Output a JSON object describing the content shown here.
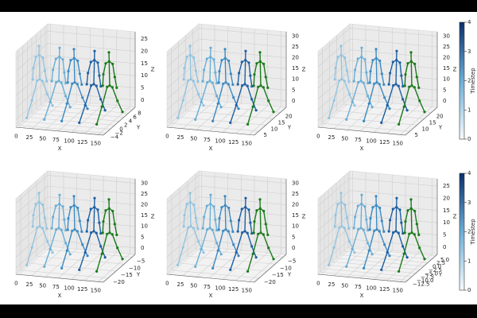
{
  "chart_data": [
    {
      "type": "skeleton3d",
      "xlabel": "X",
      "ylabel": "Y",
      "zlabel": "Z",
      "xlim": [
        -5,
        160
      ],
      "ylim": [
        -5,
        9
      ],
      "zlim": [
        -3,
        28
      ],
      "xticks": [
        0,
        25,
        50,
        75,
        100,
        125,
        150
      ],
      "yticks": [
        {
          "value": -4,
          "label": "−4"
        },
        {
          "value": -2,
          "label": "−2"
        },
        0,
        2,
        4,
        6,
        8
      ],
      "zticks": [
        0,
        5,
        10,
        15,
        20,
        25
      ],
      "colors": [
        "#94c4df",
        "#6aaed6",
        "#3c8ac2",
        "#1c5fa3",
        "#1a7a1a"
      ]
    },
    {
      "type": "skeleton3d",
      "xlabel": "X",
      "ylabel": "Y",
      "zlabel": "Z",
      "xlim": [
        -5,
        160
      ],
      "ylim": [
        2,
        24
      ],
      "zlim": [
        -3,
        32
      ],
      "xticks": [
        0,
        25,
        50,
        75,
        100,
        125,
        150
      ],
      "yticks": [
        5,
        10,
        15,
        20
      ],
      "zticks": [
        0,
        5,
        10,
        15,
        20,
        25,
        30
      ],
      "colors": [
        "#94c4df",
        "#6aaed6",
        "#3c8ac2",
        "#1c5fa3",
        "#1a7a1a"
      ]
    },
    {
      "type": "skeleton3d",
      "xlabel": "X",
      "ylabel": "Y",
      "zlabel": "Z",
      "xlim": [
        -5,
        160
      ],
      "ylim": [
        2,
        24
      ],
      "zlim": [
        -3,
        32
      ],
      "xticks": [
        0,
        25,
        50,
        75,
        100,
        125,
        150
      ],
      "yticks": [
        5,
        10,
        15,
        20
      ],
      "zticks": [
        0,
        5,
        10,
        15,
        20,
        25,
        30
      ],
      "colors": [
        "#94c4df",
        "#6aaed6",
        "#3c8ac2",
        "#1c5fa3",
        "#1a7a1a"
      ]
    },
    {
      "type": "skeleton3d",
      "xlabel": "X",
      "ylabel": "Y",
      "zlabel": "Z",
      "xlim": [
        -5,
        160
      ],
      "ylim": [
        -23,
        -3
      ],
      "zlim": [
        -3,
        32
      ],
      "xticks": [
        0,
        25,
        50,
        75,
        100,
        125,
        150
      ],
      "yticks": [
        {
          "value": -20,
          "label": "−20"
        },
        {
          "value": -15,
          "label": "−15"
        },
        {
          "value": -10,
          "label": "−10"
        },
        {
          "value": -5,
          "label": "−5"
        }
      ],
      "zticks": [
        0,
        5,
        10,
        15,
        20,
        25,
        30
      ],
      "colors": [
        "#94c4df",
        "#6aaed6",
        "#3c8ac2",
        "#1c5fa3",
        "#1a7a1a"
      ]
    },
    {
      "type": "skeleton3d",
      "xlabel": "X",
      "ylabel": "Y",
      "zlabel": "Z",
      "xlim": [
        -5,
        160
      ],
      "ylim": [
        -23,
        -3
      ],
      "zlim": [
        -3,
        32
      ],
      "xticks": [
        0,
        25,
        50,
        75,
        100,
        125,
        150
      ],
      "yticks": [
        {
          "value": -20,
          "label": "−20"
        },
        {
          "value": -15,
          "label": "−15"
        },
        {
          "value": -10,
          "label": "−10"
        },
        {
          "value": -5,
          "label": "−5"
        }
      ],
      "zticks": [
        0,
        5,
        10,
        15,
        20,
        25,
        30
      ],
      "colors": [
        "#94c4df",
        "#6aaed6",
        "#3c8ac2",
        "#1c5fa3",
        "#1a7a1a"
      ]
    },
    {
      "type": "skeleton3d",
      "xlabel": "X",
      "ylabel": "Y",
      "zlabel": "Z",
      "xlim": [
        -5,
        160
      ],
      "ylim": [
        -14,
        6
      ],
      "zlim": [
        -3,
        28
      ],
      "xticks": [
        0,
        25,
        50,
        75,
        100,
        125,
        150
      ],
      "yticks": [
        {
          "value": -12.5,
          "label": "−12.5"
        },
        {
          "value": -10,
          "label": "−10.0"
        },
        {
          "value": -7.5,
          "label": "−7.5"
        },
        {
          "value": -5,
          "label": "−5.0"
        },
        {
          "value": -2.5,
          "label": "−2.5"
        },
        {
          "value": 0,
          "label": "0.0"
        },
        2.5,
        {
          "value": 5,
          "label": "5.0"
        }
      ],
      "zticks": [
        0,
        5,
        10,
        15,
        20,
        25
      ],
      "colors": [
        "#94c4df",
        "#6aaed6",
        "#3c8ac2",
        "#1c5fa3",
        "#1a7a1a"
      ]
    },
    {
      "type": "colorbar",
      "label": "Timestep",
      "lim": [
        0,
        4
      ],
      "ticks": [
        0,
        1,
        2,
        3,
        4
      ],
      "colors": [
        "#f7fbff",
        "#6aaed6",
        "#08306b"
      ]
    },
    {
      "type": "colorbar",
      "label": "Timestep",
      "lim": [
        0,
        4
      ],
      "ticks": [
        0,
        1,
        2,
        3,
        4
      ],
      "colors": [
        "#f7fbff",
        "#6aaed6",
        "#08306b"
      ]
    }
  ]
}
